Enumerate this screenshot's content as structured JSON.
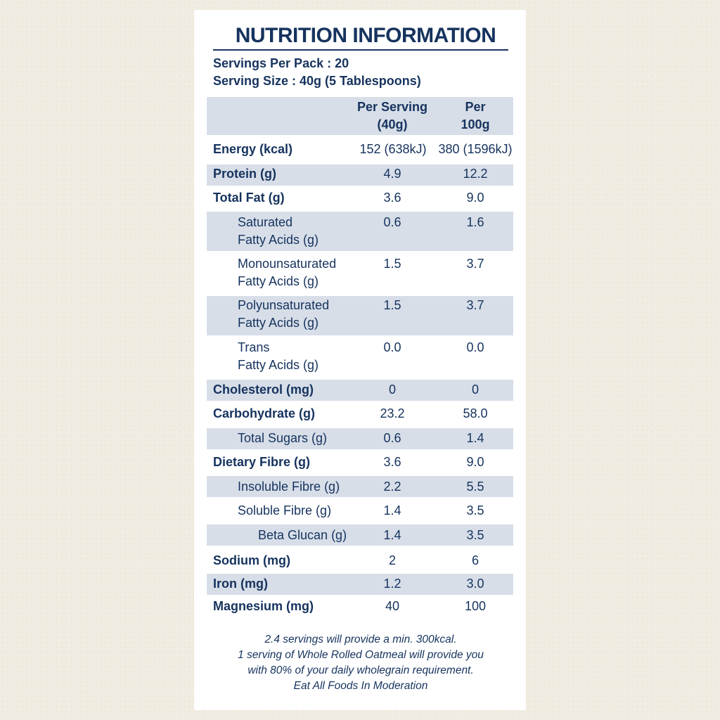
{
  "title": "NUTRITION INFORMATION",
  "servings_per_pack": "Servings Per Pack : 20",
  "serving_size": "Serving Size : 40g (5 Tablespoons)",
  "columns": {
    "per_serving_line1": "Per Serving",
    "per_serving_line2": "(40g)",
    "per_100_line1": "Per",
    "per_100_line2": "100g"
  },
  "rows": [
    {
      "line1": "Energy (kcal)",
      "line2": "",
      "serving": "152 (638kJ)",
      "per100": "380 (1596kJ)"
    },
    {
      "line1": "Protein (g)",
      "line2": "",
      "serving": "4.9",
      "per100": "12.2"
    },
    {
      "line1": "Total Fat (g)",
      "line2": "",
      "serving": "3.6",
      "per100": "9.0"
    },
    {
      "line1": "Saturated",
      "line2": "Fatty Acids (g)",
      "serving": "0.6",
      "per100": "1.6"
    },
    {
      "line1": "Monounsaturated",
      "line2": "Fatty Acids (g)",
      "serving": "1.5",
      "per100": "3.7"
    },
    {
      "line1": "Polyunsaturated",
      "line2": "Fatty Acids (g)",
      "serving": "1.5",
      "per100": "3.7"
    },
    {
      "line1": "Trans",
      "line2": "Fatty Acids (g)",
      "serving": "0.0",
      "per100": "0.0"
    },
    {
      "line1": "Cholesterol (mg)",
      "line2": "",
      "serving": "0",
      "per100": "0"
    },
    {
      "line1": "Carbohydrate (g)",
      "line2": "",
      "serving": "23.2",
      "per100": "58.0"
    },
    {
      "line1": "Total Sugars (g)",
      "line2": "",
      "serving": "0.6",
      "per100": "1.4"
    },
    {
      "line1": "Dietary Fibre (g)",
      "line2": "",
      "serving": "3.6",
      "per100": "9.0"
    },
    {
      "line1": "Insoluble Fibre (g)",
      "line2": "",
      "serving": "2.2",
      "per100": "5.5"
    },
    {
      "line1": "Soluble Fibre (g)",
      "line2": "",
      "serving": "1.4",
      "per100": "3.5"
    },
    {
      "line1": "Beta Glucan (g)",
      "line2": "",
      "serving": "1.4",
      "per100": "3.5"
    },
    {
      "line1": "Sodium (mg)",
      "line2": "",
      "serving": "2",
      "per100": "6"
    },
    {
      "line1": "Iron (mg)",
      "line2": "",
      "serving": "1.2",
      "per100": "3.0"
    },
    {
      "line1": "Magnesium (mg)",
      "line2": "",
      "serving": "40",
      "per100": "100"
    }
  ],
  "footer": {
    "line1": "2.4 servings will provide a min. 300kcal.",
    "line2": "1 serving of Whole Rolled Oatmeal will provide you",
    "line3": "with 80% of your daily wholegrain requirement.",
    "line4": "Eat All Foods In Moderation"
  },
  "colors": {
    "text": "#16335e",
    "band": "#d7dee8",
    "background": "#f1ece1"
  }
}
